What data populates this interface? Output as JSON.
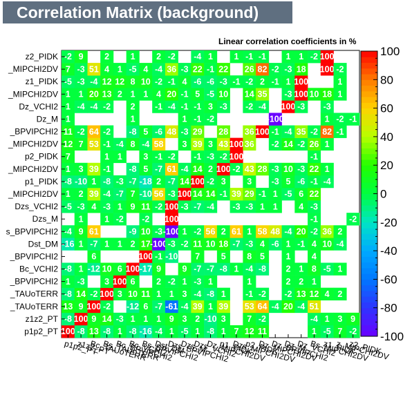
{
  "title": "Correlation Matrix (background)",
  "subtitle": "Linear correlation coefficients in %",
  "chart_data": {
    "type": "heatmap",
    "labels": [
      "p1p2_PT",
      "z1z2_PT",
      "Bc_TAUoTERR",
      "Bs_TAUoTERR",
      "Bc_BPVIPCHI2",
      "Bc_VCHI2",
      "Bs_BPVIPCHI2",
      "Dst_DM",
      "Dzs_BPVIPCHI2",
      "Dzs_M",
      "Dzs_VCHI2",
      "Dz_MIPCHI2DV",
      "p1_PIDK",
      "Dzs_MIPCHI2DV",
      "p2_PIDK",
      "Dz_MIPCHI2DV",
      "Dz_BPVIPCHI2",
      "Dz_M",
      "Dz_VCHI2",
      "Bs_MIPCHI2DV",
      "z1_PIDK",
      "z_MIPCHI2DV",
      "z2_PIDK"
    ],
    "ytick_labels": [
      "p1p2_PT",
      "z1z2_PT",
      "_TAUoTERR",
      "_TAUoTERR",
      "_BPVIPCHI2",
      "Bc_VCHI2",
      "_BPVIPCHI2",
      "Dst_DM",
      "s_BPVIPCHI2",
      "Dzs_M",
      "Dzs_VCHI2",
      "_MIPCHI2DV",
      "p1_PIDK",
      "_MIPCHI2DV",
      "p2_PIDK",
      "_MIPCHI2DV",
      "_BPVIPCHI2",
      "Dz_M",
      "Dz_VCHI2",
      "_MIPCHI2DV",
      "z1_PIDK",
      "_MIPCHI2DV",
      "z2_PIDK"
    ],
    "values": [
      [
        100,
        -8,
        13,
        -8,
        1,
        -8,
        -16,
        -4,
        1,
        -5,
        1,
        -8,
        1,
        7,
        12,
        11,
        null,
        null,
        null,
        1,
        -5,
        7,
        -2
      ],
      [
        -8,
        100,
        9,
        14,
        -3,
        1,
        1,
        1,
        9,
        3,
        2,
        -10,
        3,
        null,
        7,
        -2,
        null,
        null,
        null,
        -4,
        1,
        3,
        9
      ],
      [
        13,
        9,
        100,
        -2,
        null,
        -12,
        6,
        -7,
        -61,
        -4,
        39,
        1,
        39,
        null,
        53,
        64,
        -4,
        20,
        -4,
        51,
        null,
        null,
        null
      ],
      [
        -8,
        14,
        -2,
        100,
        3,
        10,
        11,
        1,
        1,
        3,
        -4,
        -8,
        1,
        null,
        -1,
        -2,
        null,
        -2,
        13,
        12,
        4,
        2,
        null
      ],
      [
        1,
        -3,
        null,
        3,
        100,
        6,
        null,
        2,
        -2,
        1,
        -3,
        1,
        null,
        null,
        1,
        null,
        null,
        2,
        2,
        1,
        null,
        null,
        null
      ],
      [
        -8,
        1,
        -12,
        10,
        6,
        100,
        -17,
        9,
        null,
        9,
        -7,
        -7,
        -8,
        1,
        -4,
        -8,
        null,
        2,
        1,
        8,
        -5,
        1,
        null
      ],
      [
        null,
        null,
        6,
        null,
        null,
        null,
        100,
        -1,
        -10,
        null,
        7,
        null,
        5,
        null,
        8,
        5,
        null,
        1,
        null,
        4,
        null,
        null,
        null
      ],
      [
        -16,
        1,
        -7,
        1,
        1,
        2,
        17,
        -100,
        -3,
        -2,
        11,
        10,
        18,
        -7,
        -3,
        4,
        -6,
        1,
        -1,
        4,
        10,
        -4,
        null
      ],
      [
        -4,
        9,
        61,
        null,
        null,
        -9,
        10,
        -3,
        -100,
        1,
        -2,
        56,
        2,
        61,
        1,
        58,
        48,
        -4,
        20,
        -2,
        36,
        2,
        null
      ],
      [
        null,
        1,
        null,
        1,
        -2,
        null,
        -2,
        null,
        100,
        null,
        null,
        null,
        null,
        null,
        null,
        null,
        null,
        null,
        null,
        -1,
        null,
        null,
        -2
      ],
      [
        -5,
        -3,
        4,
        -3,
        1,
        9,
        11,
        -2,
        100,
        -3,
        -7,
        -4,
        null,
        -3,
        -3,
        1,
        1,
        null,
        4,
        -3,
        null,
        null,
        null
      ],
      [
        1,
        2,
        39,
        -4,
        -7,
        7,
        -10,
        56,
        -3,
        100,
        14,
        14,
        -1,
        39,
        29,
        -1,
        1,
        -5,
        6,
        22,
        null,
        null,
        null
      ],
      [
        -8,
        -10,
        1,
        -8,
        -3,
        -7,
        -18,
        2,
        -7,
        14,
        100,
        -2,
        3,
        null,
        3,
        null,
        -3,
        5,
        -6,
        -1,
        -4,
        null,
        null
      ],
      [
        1,
        3,
        39,
        -1,
        null,
        -8,
        5,
        -7,
        61,
        -4,
        14,
        2,
        100,
        -2,
        43,
        28,
        -3,
        10,
        -3,
        22,
        1,
        null,
        null
      ],
      [
        7,
        null,
        null,
        1,
        1,
        null,
        3,
        -1,
        -2,
        null,
        -1,
        -3,
        -2,
        100,
        null,
        null,
        null,
        null,
        null,
        -1,
        null,
        null,
        null
      ],
      [
        12,
        7,
        53,
        -1,
        -4,
        8,
        -4,
        58,
        null,
        3,
        39,
        3,
        43,
        100,
        36,
        null,
        -2,
        14,
        -2,
        26,
        1,
        null,
        null
      ],
      [
        11,
        -2,
        64,
        -2,
        null,
        -8,
        5,
        -6,
        48,
        -3,
        29,
        null,
        28,
        null,
        36,
        100,
        -1,
        -4,
        35,
        -2,
        82,
        -1,
        null
      ],
      [
        1,
        null,
        null,
        null,
        null,
        1,
        null,
        null,
        null,
        1,
        -1,
        -2,
        null,
        null,
        null,
        null,
        -100,
        null,
        null,
        null,
        1,
        -2,
        -1
      ],
      [
        1,
        -4,
        -4,
        -2,
        null,
        2,
        null,
        -1,
        -4,
        -1,
        -1,
        3,
        -3,
        null,
        -2,
        -4,
        null,
        100,
        -3,
        null,
        -3,
        null,
        null
      ],
      [
        1,
        1,
        20,
        13,
        2,
        1,
        1,
        4,
        20,
        -1,
        5,
        -5,
        10,
        null,
        14,
        35,
        null,
        -3,
        100,
        10,
        18,
        1,
        null
      ],
      [
        -5,
        -3,
        -4,
        12,
        12,
        8,
        10,
        -2,
        -1,
        4,
        -6,
        -6,
        -3,
        -1,
        -2,
        2,
        -1,
        1,
        100,
        null,
        null,
        1,
        null
      ],
      [
        7,
        -3,
        51,
        4,
        1,
        -5,
        4,
        -4,
        36,
        -3,
        22,
        -1,
        22,
        null,
        26,
        82,
        -2,
        -3,
        18,
        null,
        100,
        -2,
        null
      ],
      [
        -2,
        9,
        null,
        2,
        null,
        1,
        null,
        2,
        -2,
        null,
        -4,
        1,
        null,
        1,
        -1,
        -1,
        null,
        1,
        1,
        -2,
        100,
        null,
        null
      ]
    ],
    "zlim": [
      -100,
      100
    ],
    "zticks": [
      -100,
      -80,
      -60,
      -40,
      -20,
      0,
      20,
      40,
      60,
      80,
      100
    ],
    "palette": {
      "neg100": "#6a00ff",
      "neg80": "#2f33ff",
      "neg60": "#0077ff",
      "neg40": "#00aaff",
      "neg20": "#00e5c4",
      "zero": "#00ff40",
      "pos20": "#22ff00",
      "pos40": "#b7ff00",
      "pos60": "#ffd200",
      "pos80": "#ff7a00",
      "pos100": "#ff0000"
    }
  }
}
